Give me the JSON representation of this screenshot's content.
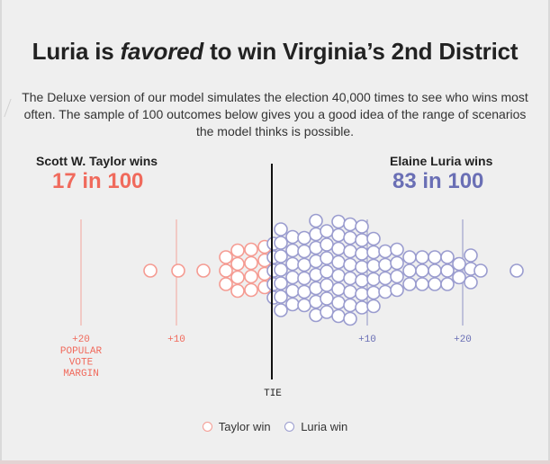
{
  "header": {
    "title_pre": "Luria is",
    "title_em": "favored",
    "title_post": "to win Virginia’s 2nd District",
    "description": "The Deluxe version of our model simulates the election 40,000 times to see who wins most often. The sample of 100 outcomes below gives you a good idea of the range of scenarios the model thinks is possible."
  },
  "left": {
    "name": "Scott W. Taylor wins",
    "count": "17 in 100",
    "color": "#f06a5c"
  },
  "right": {
    "name": "Elaine Luria wins",
    "count": "83 in 100",
    "color": "#6a6fb5"
  },
  "axis": {
    "left_ticks": [
      {
        "value": 20,
        "label": "+20"
      },
      {
        "value": 10,
        "label": "+10"
      }
    ],
    "right_ticks": [
      {
        "value": 10,
        "label": "+10"
      },
      {
        "value": 20,
        "label": "+20"
      }
    ],
    "axis_label": "POPULAR\nVOTE\nMARGIN",
    "tie_label": "TIE"
  },
  "legend": {
    "taylor": "Taylor win",
    "luria": "Luria win"
  },
  "colors": {
    "taylor": "#f59b92",
    "luria": "#9a9ccf",
    "tick_taylor": "#f3a49b",
    "tick_luria": "#8f93c6",
    "axis": "#111111"
  }
}
